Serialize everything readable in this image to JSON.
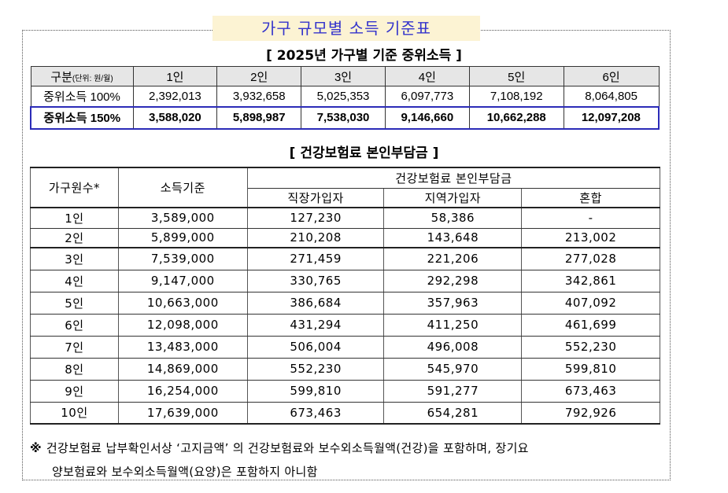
{
  "title": "가구 규모별 소득 기준표",
  "table1": {
    "caption": "[ 2025년 가구별 기준 중위소득 ]",
    "header_label": "구분",
    "header_unit": "(단위: 원/월)",
    "columns": [
      "1인",
      "2인",
      "3인",
      "4인",
      "5인",
      "6인"
    ],
    "rows": [
      {
        "label": "중위소득 100%",
        "values": [
          "2,392,013",
          "3,932,658",
          "5,025,353",
          "6,097,773",
          "7,108,192",
          "8,064,805"
        ]
      },
      {
        "label": "중위소득 150%",
        "values": [
          "3,588,020",
          "5,898,987",
          "7,538,030",
          "9,146,660",
          "10,662,288",
          "12,097,208"
        ]
      }
    ],
    "highlight_color": "#2b2bb8"
  },
  "table2": {
    "caption": "[ 건강보험료 본인부담금 ]",
    "headers": {
      "members": "가구원수*",
      "income": "소득기준",
      "group": "건강보험료 본인부담금",
      "employee": "직장가입자",
      "regional": "지역가입자",
      "mixed": "혼합"
    },
    "rows": [
      [
        "1인",
        "3,589,000",
        "127,230",
        "58,386",
        "-"
      ],
      [
        "2인",
        "5,899,000",
        "210,208",
        "143,648",
        "213,002"
      ],
      [
        "3인",
        "7,539,000",
        "271,459",
        "221,206",
        "277,028"
      ],
      [
        "4인",
        "9,147,000",
        "330,765",
        "292,298",
        "342,861"
      ],
      [
        "5인",
        "10,663,000",
        "386,684",
        "357,963",
        "407,092"
      ],
      [
        "6인",
        "12,098,000",
        "431,294",
        "411,250",
        "461,699"
      ],
      [
        "7인",
        "13,483,000",
        "506,004",
        "496,008",
        "552,230"
      ],
      [
        "8인",
        "14,869,000",
        "552,230",
        "545,970",
        "599,810"
      ],
      [
        "9인",
        "16,254,000",
        "599,810",
        "591,277",
        "673,463"
      ],
      [
        "10인",
        "17,639,000",
        "673,463",
        "654,281",
        "792,926"
      ]
    ]
  },
  "footnote": {
    "mark": "※",
    "line1": "건강보험료 납부확인서상 ‘고지금액’ 의 건강보험료와 보수외소득월액(건강)을 포함하며, 장기요",
    "line2": "양보험료와 보수외소득월액(요양)은 포함하지 아니함"
  }
}
